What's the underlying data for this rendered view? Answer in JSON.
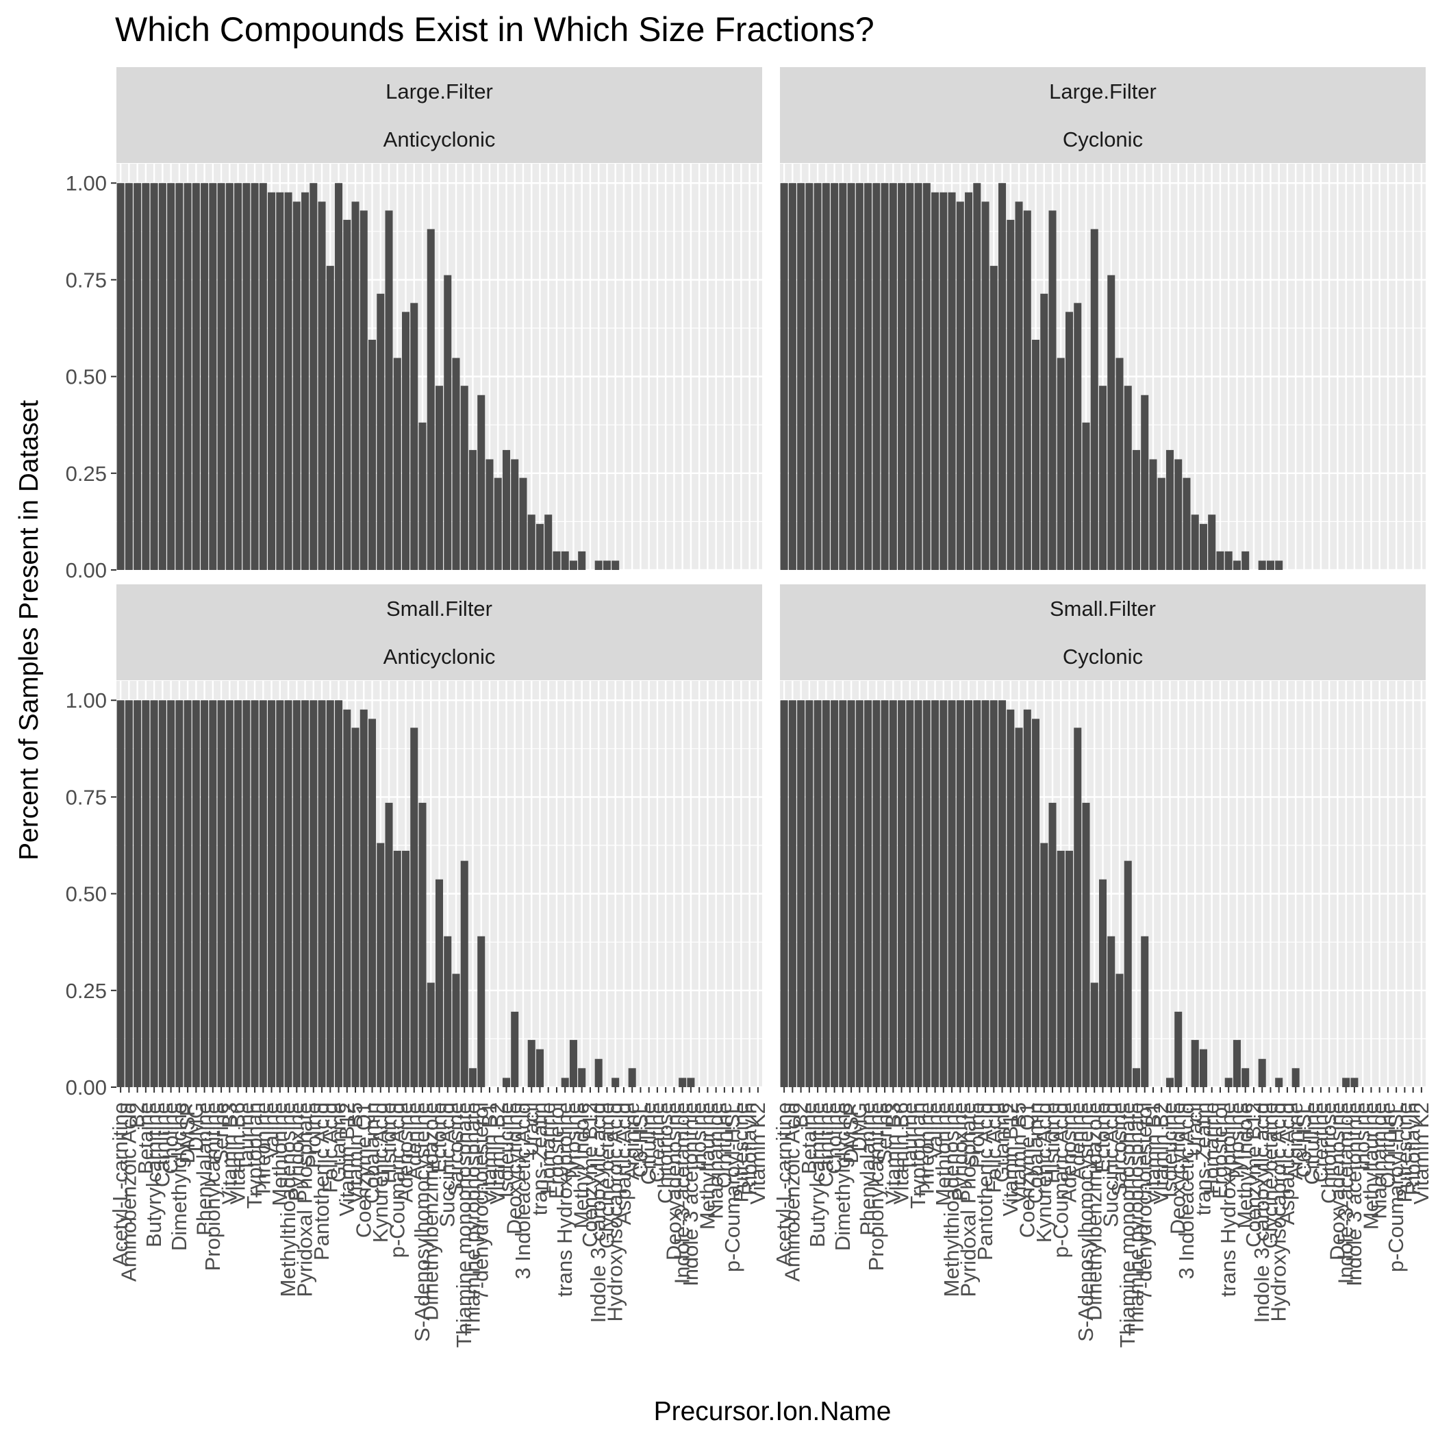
{
  "chart_data": {
    "type": "bar",
    "title": "Which Compounds Exist in Which Size Fractions?",
    "xlabel": "Precursor.Ion.Name",
    "ylabel": "Percent of Samples Present in Dataset",
    "ylim": [
      0,
      1.05
    ],
    "yticks": [
      "0.00",
      "0.25",
      "0.50",
      "0.75",
      "1.00"
    ],
    "grid": true,
    "categories": [
      "Acetyl-L-carnitine",
      "Aminobenzoic Acid",
      "B2",
      "Betaine",
      "Butyrylcarnitine",
      "Carnitine",
      "Choline",
      "Dimethylglycine",
      "DMSP",
      "DMG",
      "Phenylalanine",
      "Propionylcarnitine",
      "Serine",
      "Vitamin B3",
      "Vitamin B6",
      "Taurine",
      "Tryptophan",
      "Threonine",
      "Valine",
      "Methionine",
      "Methylthioadenosine",
      "Pyridoxine",
      "Pyridoxal Phosphate",
      "Proline",
      "Pantothenic Acid",
      "Folic Acid",
      "Guanine",
      "Vitamin B12",
      "Vitamin B5",
      "Coenzyme Q1",
      "Cobalamin",
      "Kynurenic Acid",
      "Histidine",
      "p-Coumaric Acid",
      "Adenosine",
      "Adenine",
      "S-Adenosylhomocysteine",
      "Dimethylbenzimidazole",
      "Ectoine",
      "Succinic Acid",
      "Sarcosine",
      "Thiamine monophosphate",
      "Thiamine pyrophosphate",
      "7-dehydrocholesterol",
      "Vitamin B1",
      "Vitamin B2",
      "Isoleucine",
      "Deoxycytidine",
      "3 Indoleacetic Acid",
      "Uracil",
      "trans-Zeatin",
      "Homarine",
      "Ergosterol",
      "trans Hydroxyproline",
      "Tyrosine",
      "Methyl Indole",
      "Coenzyme B12",
      "Indole 3 carboxylic acid",
      "Glycine betaine",
      "Hydroxyisocaproic Acid",
      "Aspartic Acid",
      "Arginine",
      "C6-HSL",
      "Citrulline",
      "Creatine",
      "Chitotriose",
      "Deoxyadenosine",
      "Indole-3-acetamide",
      "Indole 3 acetonitrile",
      "Inosine",
      "Methyltaurine",
      "Niacinamide",
      "Ornithine",
      "p-Coumaroyl-HSL",
      "Putrescine",
      "Riboflavin",
      "Vitamin K2"
    ],
    "panels": [
      {
        "strip_top": "Large.Filter",
        "strip_bottom": "Anticyclonic",
        "values": [
          1.0,
          1.0,
          1.0,
          1.0,
          1.0,
          1.0,
          1.0,
          1.0,
          1.0,
          1.0,
          1.0,
          1.0,
          1.0,
          1.0,
          1.0,
          1.0,
          1.0,
          1.0,
          0.976,
          0.976,
          0.976,
          0.952,
          0.976,
          1.0,
          0.952,
          0.786,
          1.0,
          0.905,
          0.952,
          0.929,
          0.595,
          0.714,
          0.929,
          0.548,
          0.667,
          0.69,
          0.381,
          0.881,
          0.476,
          0.762,
          0.548,
          0.476,
          0.31,
          0.452,
          0.286,
          0.238,
          0.31,
          0.286,
          0.238,
          0.143,
          0.119,
          0.143,
          0.048,
          0.048,
          0.024,
          0.048,
          0.0,
          0.024,
          0.024,
          0.024,
          0,
          0,
          0,
          0,
          0,
          0,
          0,
          0,
          0,
          0,
          0,
          0,
          0,
          0,
          0,
          0,
          0
        ]
      },
      {
        "strip_top": "Large.Filter",
        "strip_bottom": "Cyclonic",
        "values": [
          1.0,
          1.0,
          1.0,
          1.0,
          1.0,
          1.0,
          1.0,
          1.0,
          1.0,
          1.0,
          1.0,
          1.0,
          1.0,
          1.0,
          1.0,
          1.0,
          1.0,
          1.0,
          0.976,
          0.976,
          0.976,
          0.952,
          0.976,
          1.0,
          0.952,
          0.786,
          1.0,
          0.905,
          0.952,
          0.929,
          0.595,
          0.714,
          0.929,
          0.548,
          0.667,
          0.69,
          0.381,
          0.881,
          0.476,
          0.762,
          0.548,
          0.476,
          0.31,
          0.452,
          0.286,
          0.238,
          0.31,
          0.286,
          0.238,
          0.143,
          0.119,
          0.143,
          0.048,
          0.048,
          0.024,
          0.048,
          0.0,
          0.024,
          0.024,
          0.024,
          0,
          0,
          0,
          0,
          0,
          0,
          0,
          0,
          0,
          0,
          0,
          0,
          0,
          0,
          0,
          0,
          0
        ]
      },
      {
        "strip_top": "Small.Filter",
        "strip_bottom": "Anticyclonic",
        "values": [
          1.0,
          1.0,
          1.0,
          1.0,
          1.0,
          1.0,
          1.0,
          1.0,
          1.0,
          1.0,
          1.0,
          1.0,
          1.0,
          1.0,
          1.0,
          1.0,
          1.0,
          1.0,
          1.0,
          1.0,
          1.0,
          1.0,
          1.0,
          1.0,
          1.0,
          1.0,
          1.0,
          0.976,
          0.929,
          0.976,
          0.952,
          0.631,
          0.735,
          0.611,
          0.611,
          0.929,
          0.735,
          0.27,
          0.537,
          0.39,
          0.293,
          0.585,
          0.049,
          0.39,
          0.0,
          0.0,
          0.024,
          0.195,
          0.0,
          0.122,
          0.098,
          0.0,
          0.0,
          0.024,
          0.122,
          0.049,
          0.0,
          0.073,
          0.0,
          0.024,
          0.0,
          0.049,
          0.0,
          0.0,
          0.0,
          0.0,
          0.0,
          0.024,
          0.024,
          0,
          0,
          0,
          0,
          0,
          0,
          0,
          0
        ]
      },
      {
        "strip_top": "Small.Filter",
        "strip_bottom": "Cyclonic",
        "values": [
          1.0,
          1.0,
          1.0,
          1.0,
          1.0,
          1.0,
          1.0,
          1.0,
          1.0,
          1.0,
          1.0,
          1.0,
          1.0,
          1.0,
          1.0,
          1.0,
          1.0,
          1.0,
          1.0,
          1.0,
          1.0,
          1.0,
          1.0,
          1.0,
          1.0,
          1.0,
          1.0,
          0.976,
          0.929,
          0.976,
          0.952,
          0.631,
          0.735,
          0.611,
          0.611,
          0.929,
          0.735,
          0.27,
          0.537,
          0.39,
          0.293,
          0.585,
          0.049,
          0.39,
          0.0,
          0.0,
          0.024,
          0.195,
          0.0,
          0.122,
          0.098,
          0.0,
          0.0,
          0.024,
          0.122,
          0.049,
          0.0,
          0.073,
          0.0,
          0.024,
          0.0,
          0.049,
          0.0,
          0.0,
          0.0,
          0.0,
          0.0,
          0.024,
          0.024,
          0,
          0,
          0,
          0,
          0,
          0,
          0,
          0
        ]
      }
    ]
  },
  "colors": {
    "bar": "#4d4d4d",
    "panel_bg": "#ebebeb",
    "strip_bg": "#d9d9d9",
    "grid": "#ffffff",
    "text": "#000000",
    "tick_text": "#4d4d4d"
  }
}
